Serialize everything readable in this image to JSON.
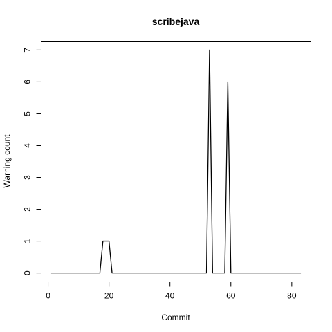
{
  "chart_data": {
    "type": "line",
    "title": "scribejava",
    "xlabel": "Commit",
    "ylabel": "Warning count",
    "xlim": [
      1,
      83
    ],
    "ylim": [
      0,
      7
    ],
    "x_ticks": [
      0,
      20,
      40,
      60,
      80
    ],
    "y_ticks": [
      0,
      1,
      2,
      3,
      4,
      5,
      6,
      7
    ],
    "grid": false,
    "legend": "none",
    "line_color": "#000000",
    "series": [
      {
        "x": [
          1,
          2,
          3,
          4,
          5,
          6,
          7,
          8,
          9,
          10,
          11,
          12,
          13,
          14,
          15,
          16,
          17,
          18,
          19,
          20,
          21,
          22,
          23,
          24,
          25,
          26,
          27,
          28,
          29,
          30,
          31,
          32,
          33,
          34,
          35,
          36,
          37,
          38,
          39,
          40,
          41,
          42,
          43,
          44,
          45,
          46,
          47,
          48,
          49,
          50,
          51,
          52,
          53,
          54,
          55,
          56,
          57,
          58,
          59,
          60,
          61,
          62,
          63,
          64,
          65,
          66,
          67,
          68,
          69,
          70,
          71,
          72,
          73,
          74,
          75,
          76,
          77,
          78,
          79,
          80,
          81,
          82,
          83
        ],
        "values": [
          0,
          0,
          0,
          0,
          0,
          0,
          0,
          0,
          0,
          0,
          0,
          0,
          0,
          0,
          0,
          0,
          0,
          1,
          1,
          1,
          0,
          0,
          0,
          0,
          0,
          0,
          0,
          0,
          0,
          0,
          0,
          0,
          0,
          0,
          0,
          0,
          0,
          0,
          0,
          0,
          0,
          0,
          0,
          0,
          0,
          0,
          0,
          0,
          0,
          0,
          0,
          0,
          7,
          0,
          0,
          0,
          0,
          0,
          6,
          0,
          0,
          0,
          0,
          0,
          0,
          0,
          0,
          0,
          0,
          0,
          0,
          0,
          0,
          0,
          0,
          0,
          0,
          0,
          0,
          0,
          0,
          0,
          0
        ]
      }
    ]
  }
}
